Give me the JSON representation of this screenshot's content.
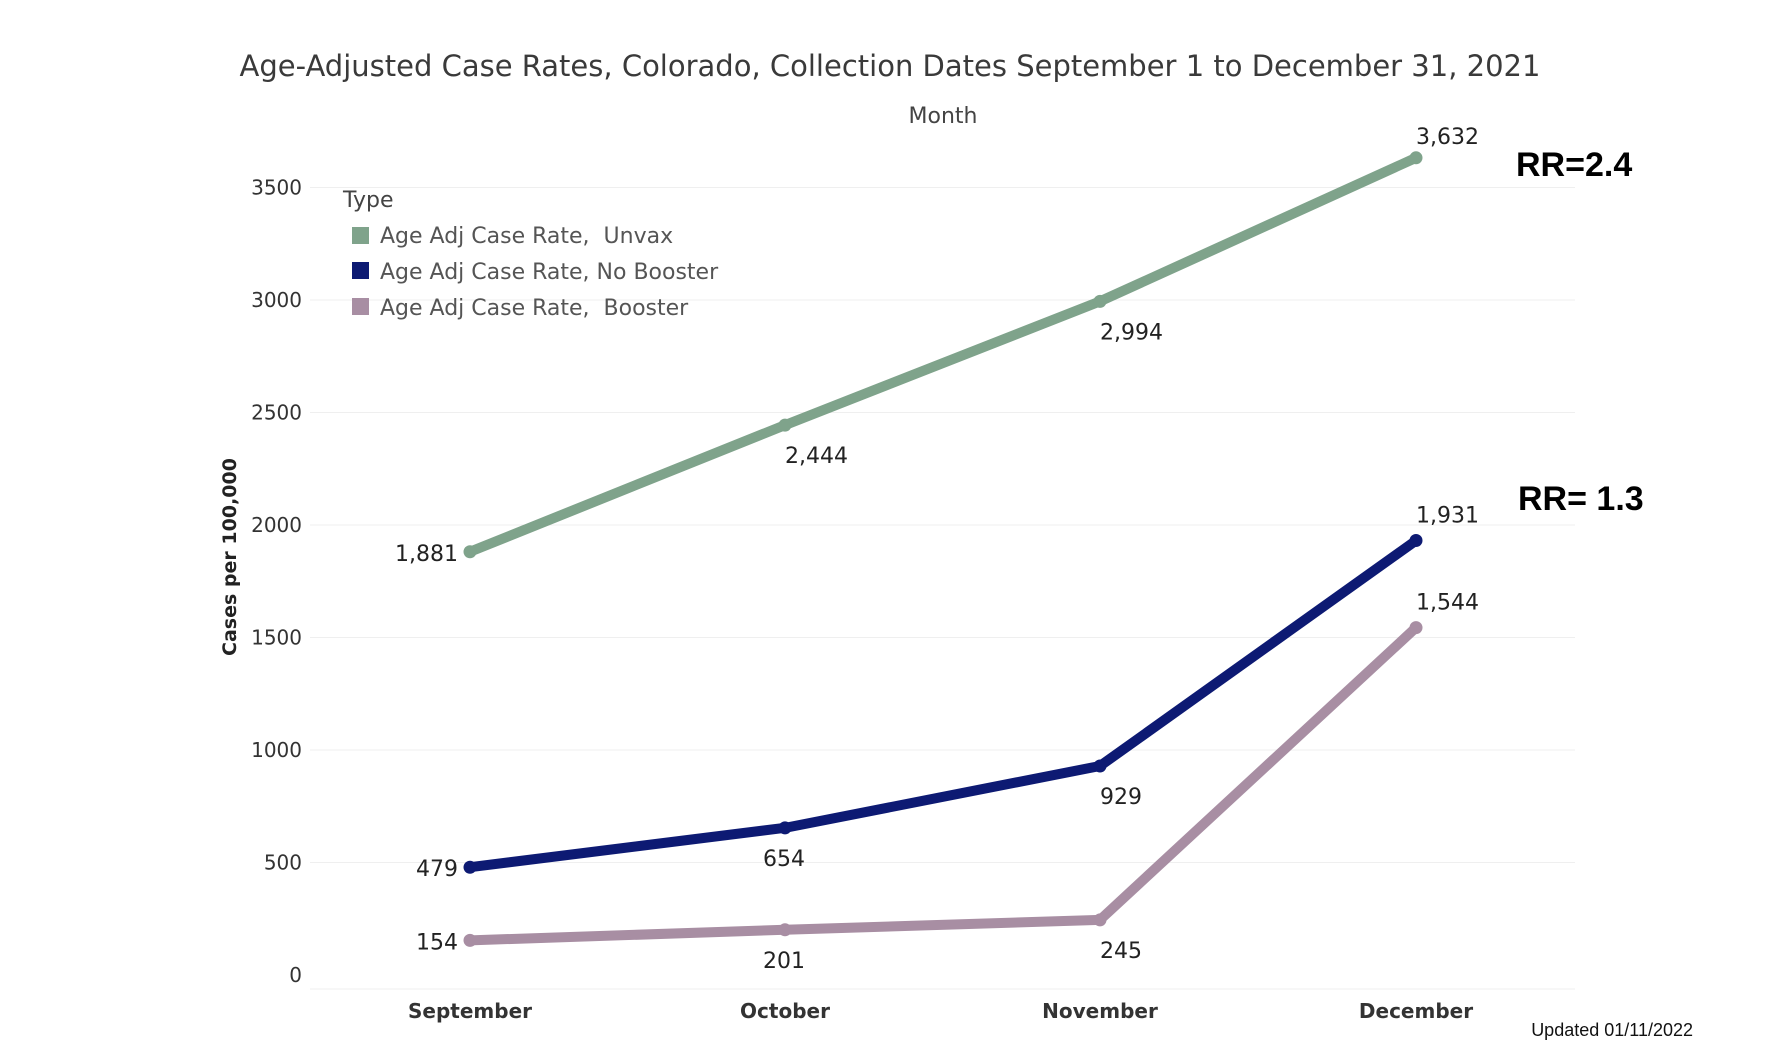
{
  "chart_data": {
    "type": "line",
    "title": "Age-Adjusted Case Rates, Colorado, Collection Dates September 1 to December 31, 2021",
    "subtitle": "Month",
    "xlabel": "",
    "ylabel": "Cases per 100,000",
    "categories": [
      "September",
      "October",
      "November",
      "December"
    ],
    "yticks": [
      0,
      500,
      1000,
      1500,
      2000,
      2500,
      3000,
      3500
    ],
    "ylim": [
      0,
      3750
    ],
    "grid": true,
    "legend": {
      "title": "Type",
      "position": "top-left"
    },
    "series": [
      {
        "name": "Age Adj Case Rate,  Unvax",
        "color": "#7fa38b",
        "values": [
          1881,
          2444,
          2994,
          3632
        ],
        "labels": [
          "1,881",
          "2,444",
          "2,994",
          "3,632"
        ]
      },
      {
        "name": "Age Adj Case Rate, No Booster",
        "color": "#0d1a73",
        "values": [
          479,
          654,
          929,
          1931
        ],
        "labels": [
          "479",
          "654",
          "929",
          "1,931"
        ]
      },
      {
        "name": "Age Adj Case Rate,  Booster",
        "color": "#a88ea3",
        "values": [
          154,
          201,
          245,
          1544
        ],
        "labels": [
          "154",
          "201",
          "245",
          "1,544"
        ]
      }
    ],
    "annotations": [
      "RR=2.4",
      "RR= 1.3"
    ]
  },
  "footer": {
    "updated": "Updated 01/11/2022"
  }
}
